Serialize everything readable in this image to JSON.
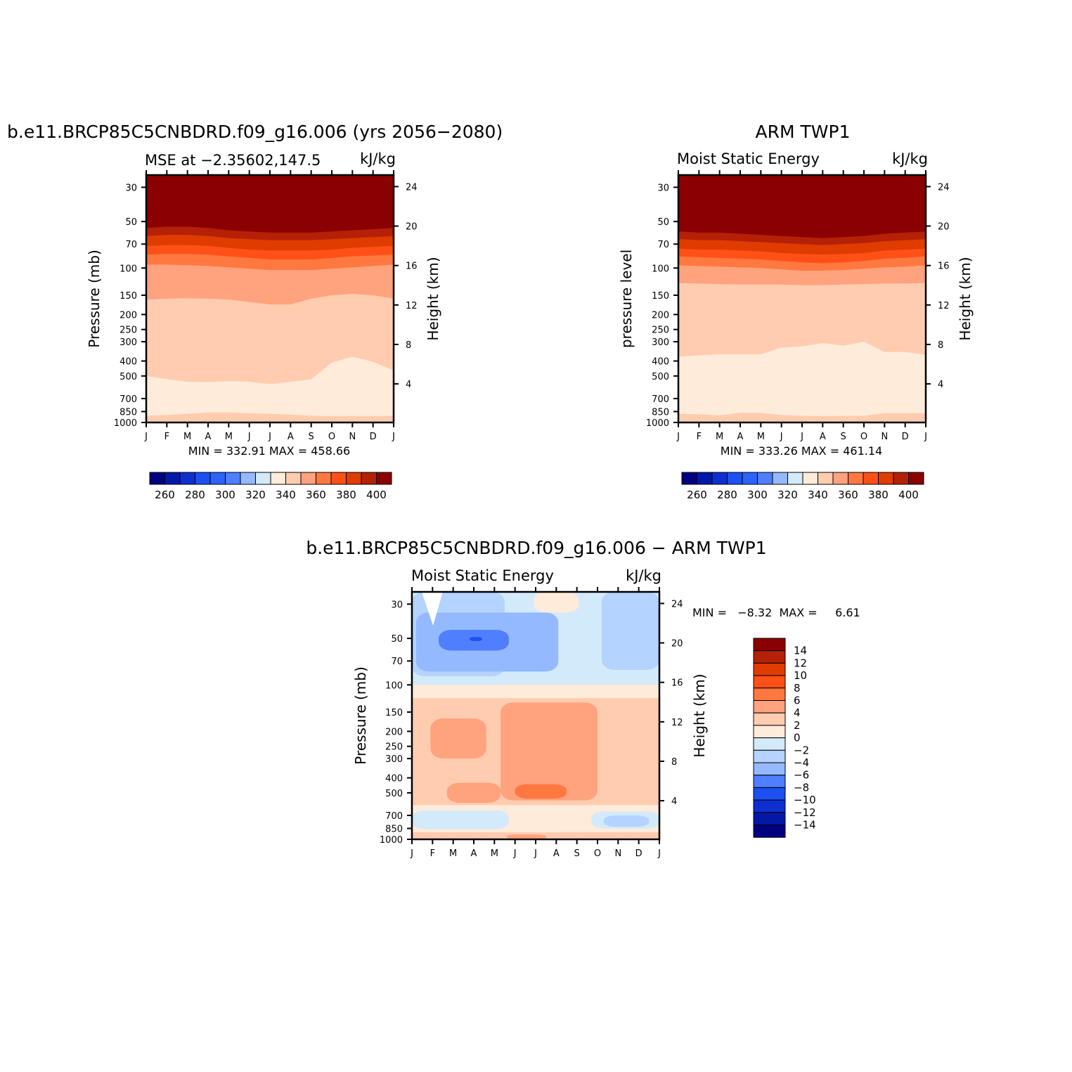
{
  "chart_data": [
    {
      "type": "heatmap",
      "title": "b.e11.BRCP85C5CNBDRD.f09_g16.006 (yrs 2056−2080)",
      "left_string": "MSE at −2.35602,147.5",
      "right_string": "kJ/kg",
      "ylabel": "Pressure (mb)",
      "ylabel_right": "Height (km)",
      "x_ticks": [
        "J",
        "F",
        "M",
        "A",
        "M",
        "J",
        "J",
        "A",
        "S",
        "O",
        "N",
        "D",
        "J"
      ],
      "y_ticks": [
        "30",
        "50",
        "70",
        "100",
        "150",
        "200",
        "250",
        "300",
        "400",
        "500",
        "700",
        "850",
        "1000"
      ],
      "y_ticks_right": [
        "24",
        "20",
        "16",
        "12",
        "8",
        "4"
      ],
      "ylim": [
        1000,
        25
      ],
      "y_scale": "log",
      "stats": "MIN = 332.91 MAX = 458.66",
      "colorbar": {
        "orientation": "horizontal",
        "labels": [
          "260",
          "280",
          "300",
          "320",
          "340",
          "360",
          "380",
          "400"
        ]
      },
      "contour_levels": [
        250,
        260,
        270,
        280,
        290,
        300,
        310,
        320,
        330,
        340,
        350,
        360,
        370,
        380,
        390,
        400
      ],
      "fields": [
        {
          "name": ">400",
          "color": "#8b0000",
          "lower_boundary": [
            55,
            54,
            54,
            55,
            57,
            58,
            59,
            59,
            59,
            58,
            57,
            56,
            55
          ]
        },
        {
          "name": "390-400",
          "color": "#b52107",
          "lower_boundary": [
            62,
            61,
            61,
            62,
            64,
            65,
            66,
            66,
            66,
            65,
            64,
            63,
            62
          ]
        },
        {
          "name": "380-390",
          "color": "#e03c00",
          "lower_boundary": [
            72,
            71,
            71,
            72,
            74,
            76,
            77,
            77,
            77,
            76,
            74,
            73,
            72
          ]
        },
        {
          "name": "370-380",
          "color": "#ff5017",
          "lower_boundary": [
            82,
            81,
            81,
            82,
            84,
            86,
            88,
            88,
            88,
            86,
            84,
            83,
            82
          ]
        },
        {
          "name": "360-370",
          "color": "#ff7840",
          "lower_boundary": [
            95,
            95,
            96,
            97,
            99,
            101,
            103,
            103,
            103,
            101,
            99,
            97,
            95
          ]
        },
        {
          "name": "350-360",
          "color": "#ffa27e",
          "lower_boundary": [
            160,
            158,
            157,
            158,
            160,
            166,
            172,
            172,
            158,
            150,
            147,
            150,
            158
          ]
        },
        {
          "name": "340-350",
          "color": "#ffccb0",
          "lower_boundary": [
            500,
            525,
            545,
            548,
            540,
            545,
            565,
            545,
            525,
            410,
            375,
            405,
            460
          ]
        },
        {
          "name": "330-340",
          "color": "#ffebda",
          "lower_boundary": [
            905,
            895,
            878,
            862,
            862,
            872,
            878,
            890,
            902,
            912,
            912,
            912,
            902
          ]
        }
      ]
    },
    {
      "type": "heatmap",
      "title": "ARM TWP1",
      "left_string": "Moist Static Energy",
      "right_string": "kJ/kg",
      "ylabel": "pressure level",
      "ylabel_right": "Height (km)",
      "x_ticks": [
        "J",
        "F",
        "M",
        "A",
        "M",
        "J",
        "J",
        "A",
        "S",
        "O",
        "N",
        "D",
        "J"
      ],
      "y_ticks": [
        "30",
        "50",
        "70",
        "100",
        "150",
        "200",
        "250",
        "300",
        "400",
        "500",
        "700",
        "850",
        "1000"
      ],
      "y_ticks_right": [
        "24",
        "20",
        "16",
        "12",
        "8",
        "4"
      ],
      "ylim": [
        1000,
        25
      ],
      "y_scale": "log",
      "stats": "MIN = 333.26 MAX = 461.14",
      "colorbar": {
        "orientation": "horizontal",
        "labels": [
          "260",
          "280",
          "300",
          "320",
          "340",
          "360",
          "380",
          "400"
        ]
      },
      "contour_levels": [
        250,
        260,
        270,
        280,
        290,
        300,
        310,
        320,
        330,
        340,
        350,
        360,
        370,
        380,
        390,
        400
      ],
      "fields": [
        {
          "name": ">400",
          "color": "#8b0000",
          "lower_boundary": [
            58,
            59,
            59,
            60,
            61,
            62,
            63,
            64,
            63,
            62,
            60,
            59,
            58
          ]
        },
        {
          "name": "390-400",
          "color": "#b52107",
          "lower_boundary": [
            65,
            66,
            66,
            67,
            68,
            69,
            70,
            71,
            70,
            69,
            67,
            66,
            65
          ]
        },
        {
          "name": "380-390",
          "color": "#e03c00",
          "lower_boundary": [
            75,
            76,
            76,
            77,
            78,
            80,
            81,
            82,
            81,
            80,
            77,
            76,
            75
          ]
        },
        {
          "name": "370-380",
          "color": "#ff5017",
          "lower_boundary": [
            84,
            85,
            86,
            87,
            88,
            90,
            92,
            93,
            92,
            90,
            87,
            86,
            84
          ]
        },
        {
          "name": "360-370",
          "color": "#ff7840",
          "lower_boundary": [
            96,
            97,
            98,
            99,
            100,
            102,
            104,
            104,
            103,
            101,
            99,
            98,
            96
          ]
        },
        {
          "name": "350-360",
          "color": "#ffa27e",
          "lower_boundary": [
            125,
            126,
            127,
            128,
            128,
            128,
            129,
            129,
            128,
            127,
            126,
            126,
            125
          ]
        },
        {
          "name": "340-350",
          "color": "#ffccb0",
          "lower_boundary": [
            375,
            368,
            362,
            362,
            362,
            328,
            322,
            306,
            318,
            300,
            350,
            350,
            365
          ]
        },
        {
          "name": "330-340",
          "color": "#ffebda",
          "lower_boundary": [
            880,
            885,
            900,
            865,
            868,
            895,
            905,
            910,
            905,
            905,
            870,
            870,
            870
          ]
        }
      ]
    },
    {
      "type": "heatmap",
      "title": "b.e11.BRCP85C5CNBDRD.f09_g16.006 − ARM TWP1",
      "left_string": "Moist Static Energy",
      "right_string": "kJ/kg",
      "ylabel": "Pressure (mb)",
      "ylabel_right": "Height (km)",
      "x_ticks": [
        "J",
        "F",
        "M",
        "A",
        "M",
        "J",
        "J",
        "A",
        "S",
        "O",
        "N",
        "D",
        "J"
      ],
      "y_ticks": [
        "30",
        "50",
        "70",
        "100",
        "150",
        "200",
        "250",
        "300",
        "400",
        "500",
        "700",
        "850",
        "1000"
      ],
      "y_ticks_right": [
        "24",
        "20",
        "16",
        "12",
        "8",
        "4"
      ],
      "ylim": [
        1000,
        25
      ],
      "y_scale": "log",
      "stats": "MIN =   −8.32  MAX =     6.61",
      "colorbar": {
        "orientation": "vertical",
        "labels": [
          "14",
          "12",
          "10",
          "8",
          "6",
          "4",
          "2",
          "0",
          "−2",
          "−4",
          "−6",
          "−8",
          "−10",
          "−12",
          "−14"
        ]
      },
      "contour_levels": [
        -15,
        -14,
        -12,
        -10,
        -8,
        -6,
        -4,
        -2,
        0,
        2,
        4,
        6,
        8,
        10,
        12,
        14,
        15
      ],
      "regions": [
        {
          "range": "-2-0",
          "color": "#d3eafa",
          "x": [
            0,
            12
          ],
          "p": [
            25,
            100
          ]
        },
        {
          "range": "-4-2",
          "color": "#b4d3fe",
          "x": [
            0,
            4.5
          ],
          "p": [
            25,
            88
          ]
        },
        {
          "range": "-4-2",
          "color": "#b4d3fe",
          "x": [
            9.2,
            12
          ],
          "p": [
            25,
            80
          ]
        },
        {
          "range": "-6-4",
          "color": "#94b9fe",
          "x": [
            0.2,
            7.1
          ],
          "p": [
            34,
            82
          ]
        },
        {
          "range": "-8-6",
          "color": "#4f7efe",
          "x": [
            1.3,
            4.7
          ],
          "p": [
            44,
            60
          ]
        },
        {
          "range": "-10-8",
          "color": "#1c50f0",
          "x": [
            2.8,
            3.4
          ],
          "p": [
            49,
            52
          ]
        },
        {
          "range": "0-2",
          "color": "#ffebda",
          "x": [
            5.9,
            8.1
          ],
          "p": [
            25,
            34
          ]
        },
        {
          "range": "0-2",
          "color": "#ffebda",
          "x": [
            0,
            12
          ],
          "p": [
            100,
            122
          ]
        },
        {
          "range": "2-4",
          "color": "#ffccb0",
          "x": [
            0,
            12
          ],
          "p": [
            122,
            600
          ]
        },
        {
          "range": "4-6",
          "color": "#ffa27e",
          "x": [
            0.9,
            3.6
          ],
          "p": [
            165,
            300
          ]
        },
        {
          "range": "4-6",
          "color": "#ffa27e",
          "x": [
            4.3,
            9.0
          ],
          "p": [
            130,
            560
          ]
        },
        {
          "range": "4-6",
          "color": "#ffa27e",
          "x": [
            1.7,
            4.3
          ],
          "p": [
            430,
            580
          ]
        },
        {
          "range": "6-8",
          "color": "#ff7840",
          "x": [
            5.0,
            7.5
          ],
          "p": [
            440,
            545
          ]
        },
        {
          "range": "0-2",
          "color": "#ffebda",
          "x": [
            0,
            12
          ],
          "p": [
            600,
            900
          ]
        },
        {
          "range": "-2-0",
          "color": "#d3eafa",
          "x": [
            0,
            4.7
          ],
          "p": [
            650,
            860
          ]
        },
        {
          "range": "-2-0",
          "color": "#d3eafa",
          "x": [
            8.7,
            12
          ],
          "p": [
            660,
            850
          ]
        },
        {
          "range": "-4-2",
          "color": "#b4d3fe",
          "x": [
            9.3,
            11.5
          ],
          "p": [
            700,
            830
          ]
        },
        {
          "range": "2-4",
          "color": "#ffccb0",
          "x": [
            0,
            12
          ],
          "p": [
            900,
            1000
          ]
        },
        {
          "range": "4-6",
          "color": "#ffa27e",
          "x": [
            4.6,
            6.5
          ],
          "p": [
            930,
            1000
          ]
        }
      ]
    }
  ]
}
